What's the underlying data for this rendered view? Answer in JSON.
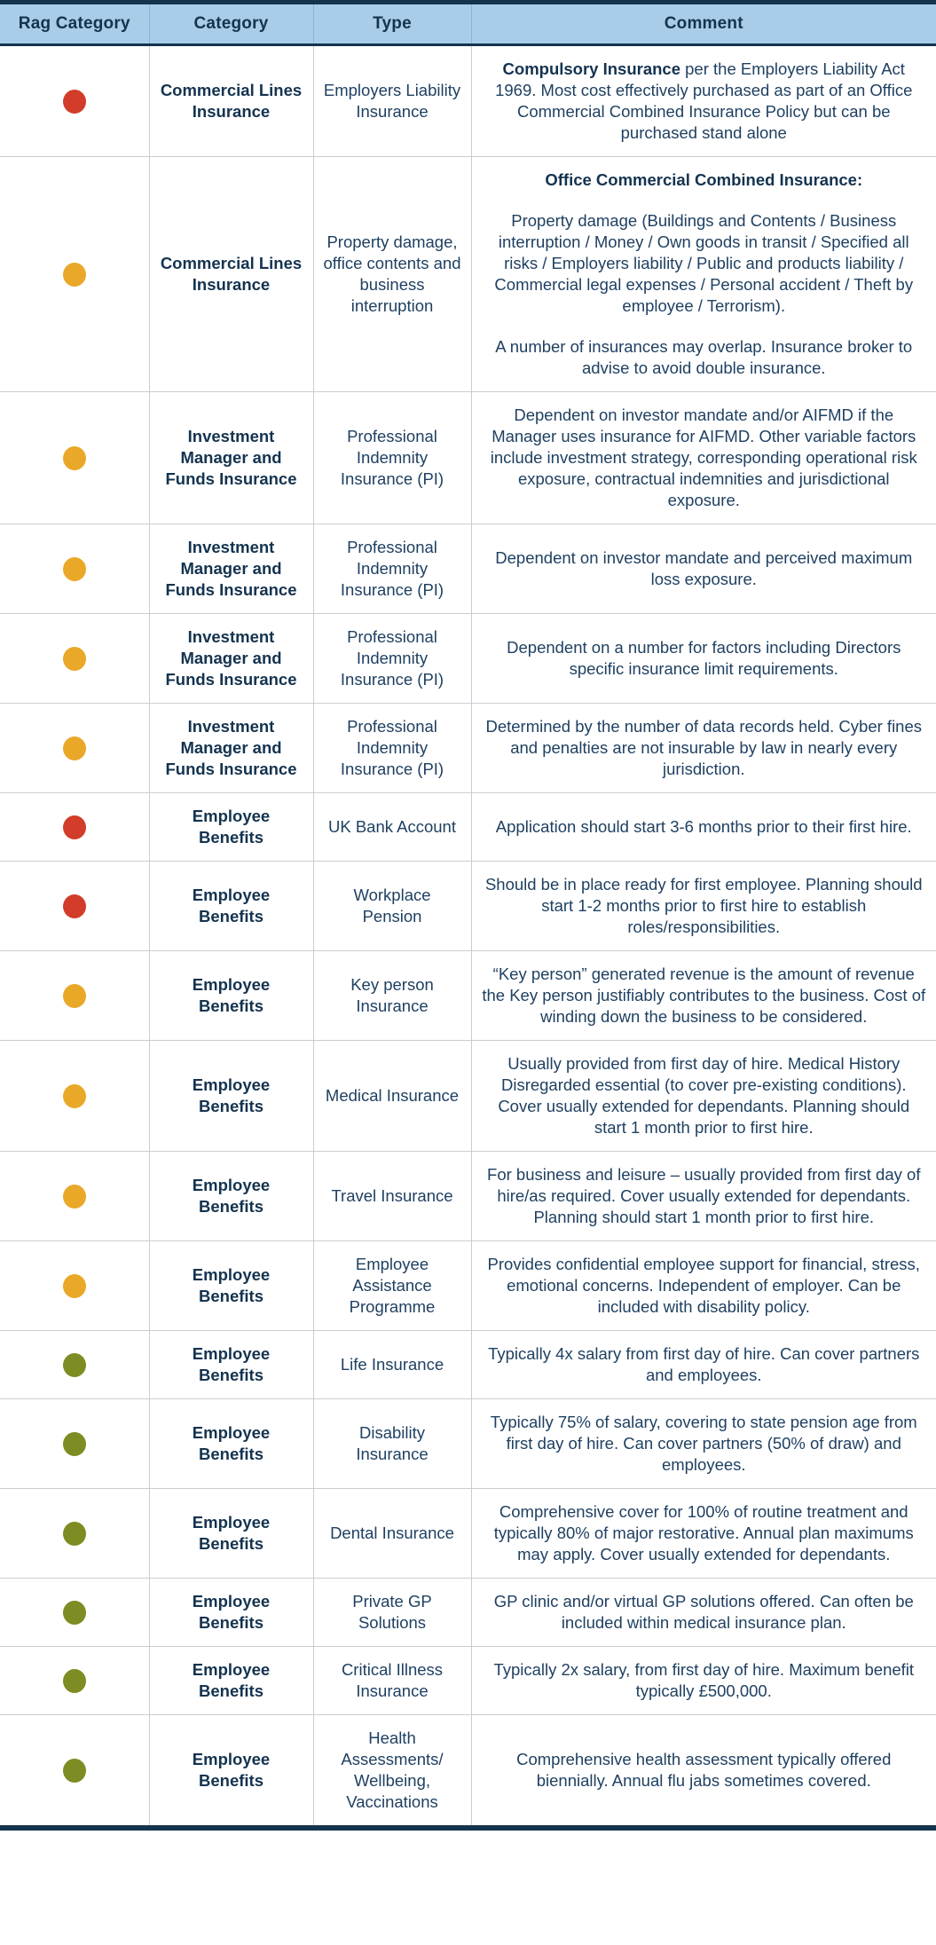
{
  "colors": {
    "header_bg": "#a9cde9",
    "navy": "#14334d",
    "body_text": "#1f4061",
    "grid_line": "#c9cdd2",
    "rag_red": "#d23c28",
    "rag_amber": "#eaa829",
    "rag_green": "#7e8c23"
  },
  "table": {
    "columns": [
      "Rag Category",
      "Category",
      "Type",
      "Comment"
    ],
    "rag_legend": {
      "red": "red-status-dot",
      "amber": "amber-status-dot",
      "green": "green-status-dot"
    },
    "rows": [
      {
        "rag": "red",
        "category": "Commercial Lines Insurance",
        "type": "Employers Liability Insurance",
        "comment": [
          [
            {
              "text": "Compulsory Insurance",
              "bold": true
            },
            {
              "text": " per the Employers Liability Act 1969. Most cost effectively purchased as part of an Office Commercial Combined Insurance Policy but can be purchased stand alone",
              "bold": false
            }
          ]
        ]
      },
      {
        "rag": "amber",
        "category": "Commercial Lines Insurance",
        "type": "Property damage, office contents and business interruption",
        "comment": [
          [
            {
              "text": "Office Commercial Combined Insurance:",
              "bold": true
            }
          ],
          [
            {
              "text": "Property damage (Buildings and Contents / Business interruption / Money / Own goods in transit / Specified all risks / Employers liability / Public and products liability / Commercial legal expenses / Personal accident / Theft by employee / Terrorism).",
              "bold": false
            }
          ],
          [
            {
              "text": "A number of insurances may overlap. Insurance broker to advise to avoid double insurance.",
              "bold": false
            }
          ]
        ]
      },
      {
        "rag": "amber",
        "category": "Investment Manager and Funds Insurance",
        "type": "Professional Indemnity Insurance (PI)",
        "comment": [
          [
            {
              "text": "Dependent on investor mandate and/or AIFMD if the Manager uses insurance for AIFMD. Other variable factors include investment strategy, corresponding operational risk exposure, contractual indemnities and jurisdictional exposure.",
              "bold": false
            }
          ]
        ]
      },
      {
        "rag": "amber",
        "category": "Investment Manager and Funds Insurance",
        "type": "Professional Indemnity Insurance (PI)",
        "comment": [
          [
            {
              "text": "Dependent on investor mandate and perceived maximum loss exposure.",
              "bold": false
            }
          ]
        ]
      },
      {
        "rag": "amber",
        "category": "Investment Manager and Funds Insurance",
        "type": "Professional Indemnity Insurance (PI)",
        "comment": [
          [
            {
              "text": "Dependent on a number for factors including Directors specific insurance limit requirements.",
              "bold": false
            }
          ]
        ]
      },
      {
        "rag": "amber",
        "category": "Investment Manager and Funds Insurance",
        "type": "Professional Indemnity Insurance (PI)",
        "comment": [
          [
            {
              "text": "Determined by the number of data records held. Cyber fines and penalties are not insurable by law in nearly every jurisdiction.",
              "bold": false
            }
          ]
        ]
      },
      {
        "rag": "red",
        "category": "Employee Benefits",
        "type": "UK Bank Account",
        "comment": [
          [
            {
              "text": "Application should start 3-6 months prior to their first hire.",
              "bold": false
            }
          ]
        ]
      },
      {
        "rag": "red",
        "category": "Employee Benefits",
        "type": "Workplace Pension",
        "comment": [
          [
            {
              "text": "Should be in place ready for first employee. Planning should start 1-2 months prior to first hire to establish roles/responsibilities.",
              "bold": false
            }
          ]
        ]
      },
      {
        "rag": "amber",
        "category": "Employee Benefits",
        "type": "Key person Insurance",
        "comment": [
          [
            {
              "text": "“Key person” generated revenue is the amount of revenue the Key person justifiably contributes to the business. Cost of winding down the business to be considered.",
              "bold": false
            }
          ]
        ]
      },
      {
        "rag": "amber",
        "category": "Employee Benefits",
        "type": "Medical Insurance",
        "comment": [
          [
            {
              "text": "Usually provided from first day of hire. Medical History Disregarded essential (to cover pre-existing conditions). Cover usually extended for dependants. Planning should start 1 month prior to first hire.",
              "bold": false
            }
          ]
        ]
      },
      {
        "rag": "amber",
        "category": "Employee Benefits",
        "type": "Travel Insurance",
        "comment": [
          [
            {
              "text": "For business and leisure – usually provided from first day of hire/as required. Cover usually extended for dependants. Planning should start 1 month prior to first hire.",
              "bold": false
            }
          ]
        ]
      },
      {
        "rag": "amber",
        "category": "Employee Benefits",
        "type": "Employee Assistance Programme",
        "comment": [
          [
            {
              "text": "Provides confidential employee support for financial, stress, emotional concerns. Independent of employer. Can be included with disability policy.",
              "bold": false
            }
          ]
        ]
      },
      {
        "rag": "green",
        "category": "Employee Benefits",
        "type": "Life Insurance",
        "comment": [
          [
            {
              "text": "Typically 4x salary from first day of hire. Can cover partners and employees.",
              "bold": false
            }
          ]
        ]
      },
      {
        "rag": "green",
        "category": "Employee Benefits",
        "type": "Disability Insurance",
        "comment": [
          [
            {
              "text": "Typically 75% of salary, covering to state pension age from first day of hire. Can cover partners (50% of draw) and employees.",
              "bold": false
            }
          ]
        ]
      },
      {
        "rag": "green",
        "category": "Employee Benefits",
        "type": "Dental Insurance",
        "comment": [
          [
            {
              "text": "Comprehensive cover for 100% of routine treatment and typically 80% of major restorative. Annual plan maximums may apply. Cover usually extended for dependants.",
              "bold": false
            }
          ]
        ]
      },
      {
        "rag": "green",
        "category": "Employee Benefits",
        "type": "Private GP Solutions",
        "comment": [
          [
            {
              "text": "GP clinic and/or virtual GP solutions offered. Can often be included within medical insurance plan.",
              "bold": false
            }
          ]
        ]
      },
      {
        "rag": "green",
        "category": "Employee Benefits",
        "type": "Critical Illness Insurance",
        "comment": [
          [
            {
              "text": "Typically 2x salary, from first day of hire. Maximum benefit typically £500,000.",
              "bold": false
            }
          ]
        ]
      },
      {
        "rag": "green",
        "category": "Employee Benefits",
        "type": "Health Assessments/ Wellbeing, Vaccinations",
        "comment": [
          [
            {
              "text": "Comprehensive health assessment typically offered biennially. Annual flu jabs sometimes covered.",
              "bold": false
            }
          ]
        ]
      }
    ]
  }
}
